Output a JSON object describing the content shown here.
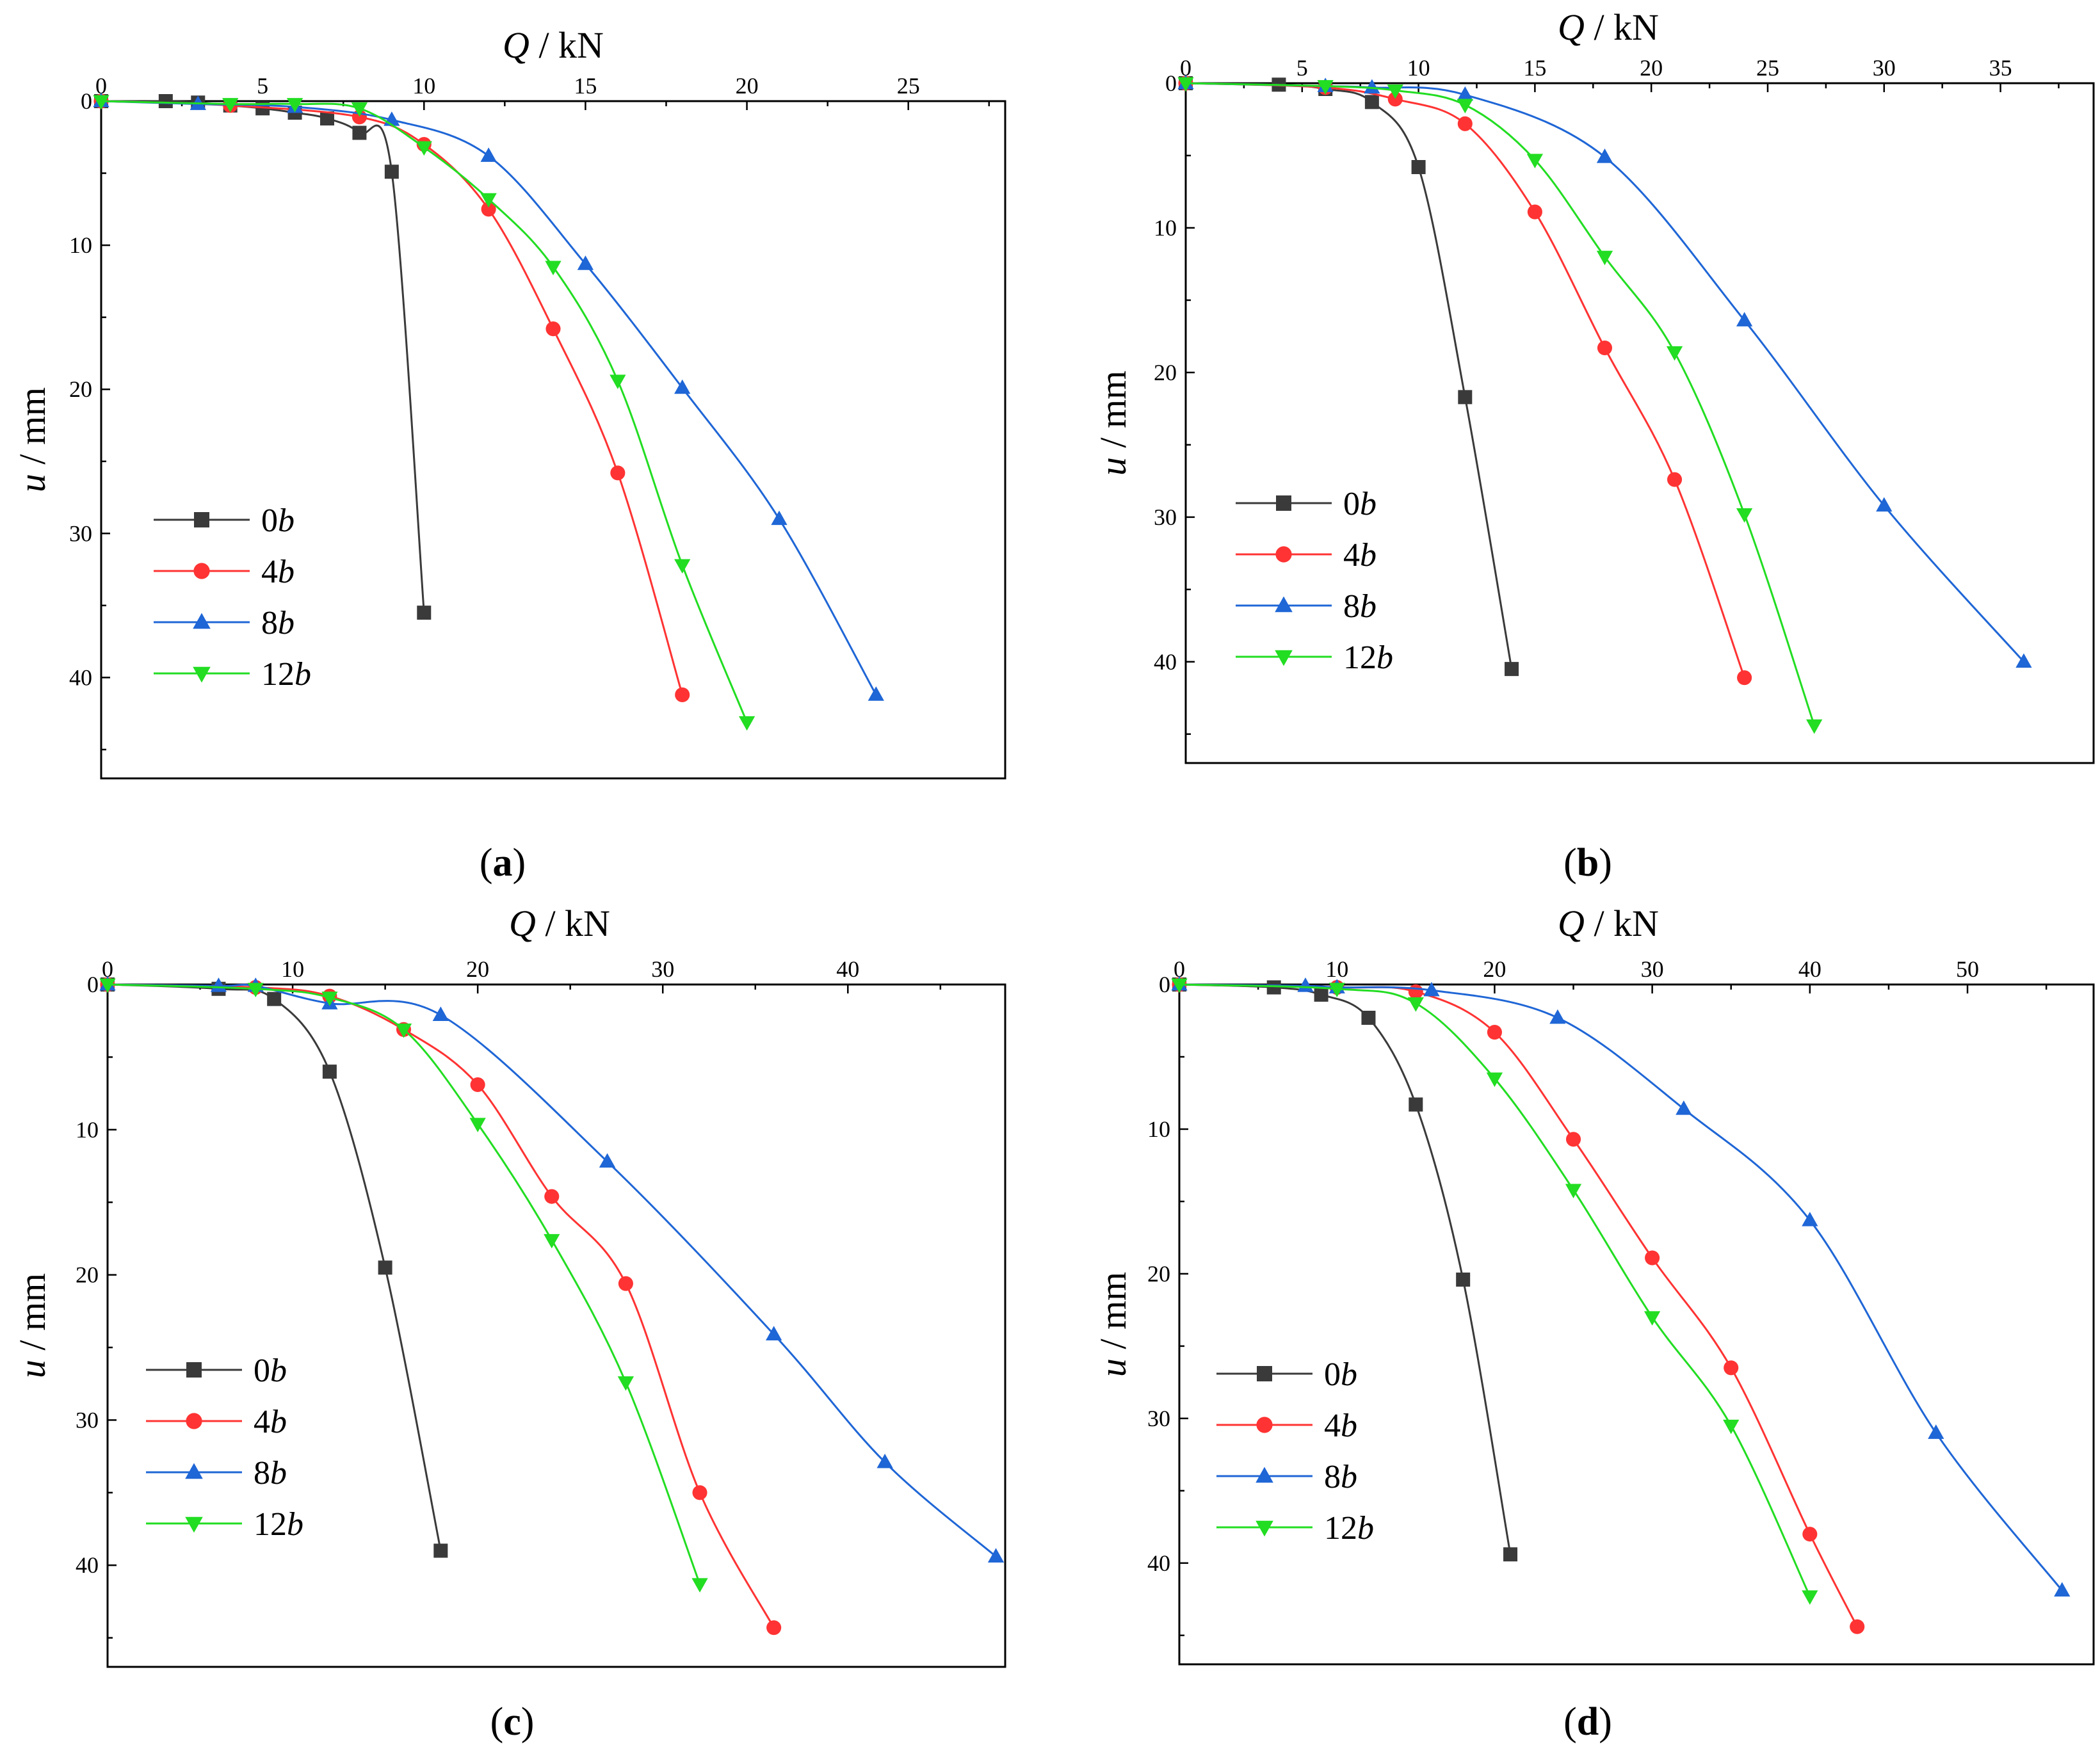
{
  "colors": {
    "0b": "#3a3a3a",
    "4b": "#ff3333",
    "8b": "#1f66d6",
    "12b": "#22dd22"
  },
  "chart_data": [
    {
      "type": "line",
      "panel_label": "a",
      "xlabel_italic": "Q",
      "xlabel_unit": " / kN",
      "ylabel_italic": "u",
      "ylabel_unit": " / mm",
      "xlim": [
        0,
        28
      ],
      "ylim": [
        0,
        47
      ],
      "xticks": [
        0,
        5,
        10,
        15,
        20,
        25
      ],
      "yticks": [
        0,
        10,
        20,
        30,
        40
      ],
      "series": [
        {
          "key": "0b",
          "name_num": "0",
          "name_ital": "b",
          "marker": "square",
          "points": [
            [
              0,
              0
            ],
            [
              2,
              0
            ],
            [
              3,
              0.1
            ],
            [
              4,
              0.3
            ],
            [
              5,
              0.5
            ],
            [
              6,
              0.8
            ],
            [
              7,
              1.2
            ],
            [
              8,
              2.2
            ],
            [
              9,
              4.9
            ],
            [
              10,
              35.5
            ]
          ]
        },
        {
          "key": "4b",
          "name_num": "4",
          "name_ital": "b",
          "marker": "circle",
          "points": [
            [
              0,
              0
            ],
            [
              4,
              0.3
            ],
            [
              8,
              1.1
            ],
            [
              10,
              3
            ],
            [
              12,
              7.5
            ],
            [
              14,
              15.8
            ],
            [
              16,
              25.8
            ],
            [
              18,
              41.2
            ]
          ]
        },
        {
          "key": "8b",
          "name_num": "8",
          "name_ital": "b",
          "marker": "triangle-up",
          "points": [
            [
              0,
              0
            ],
            [
              3,
              0.2
            ],
            [
              6,
              0.4
            ],
            [
              9,
              1.3
            ],
            [
              12,
              3.8
            ],
            [
              15,
              11.3
            ],
            [
              18,
              19.9
            ],
            [
              21,
              29
            ],
            [
              24,
              41.2
            ]
          ]
        },
        {
          "key": "12b",
          "name_num": "12",
          "name_ital": "b",
          "marker": "triangle-down",
          "points": [
            [
              0,
              0
            ],
            [
              4,
              0.2
            ],
            [
              6,
              0.2
            ],
            [
              8,
              0.5
            ],
            [
              10,
              3.2
            ],
            [
              12,
              6.8
            ],
            [
              14,
              11.5
            ],
            [
              16,
              19.4
            ],
            [
              18,
              32.2
            ],
            [
              20,
              43.1
            ]
          ]
        }
      ]
    },
    {
      "type": "line",
      "panel_label": "b",
      "xlabel_italic": "Q",
      "xlabel_unit": " / kN",
      "ylabel_italic": "u",
      "ylabel_unit": " / mm",
      "xlim": [
        0,
        39
      ],
      "ylim": [
        0,
        47
      ],
      "xticks": [
        0,
        5,
        10,
        15,
        20,
        25,
        30,
        35
      ],
      "yticks": [
        0,
        10,
        20,
        30,
        40
      ],
      "series": [
        {
          "key": "0b",
          "name_num": "0",
          "name_ital": "b",
          "marker": "square",
          "points": [
            [
              0,
              0
            ],
            [
              4,
              0.1
            ],
            [
              6,
              0.4
            ],
            [
              8,
              1.3
            ],
            [
              10,
              5.8
            ],
            [
              12,
              21.7
            ],
            [
              14,
              40.5
            ]
          ]
        },
        {
          "key": "4b",
          "name_num": "4",
          "name_ital": "b",
          "marker": "circle",
          "points": [
            [
              0,
              0
            ],
            [
              6,
              0.3
            ],
            [
              9,
              1.1
            ],
            [
              12,
              2.8
            ],
            [
              15,
              8.9
            ],
            [
              18,
              18.3
            ],
            [
              21,
              27.4
            ],
            [
              24,
              41.1
            ]
          ]
        },
        {
          "key": "8b",
          "name_num": "8",
          "name_ital": "b",
          "marker": "triangle-up",
          "points": [
            [
              0,
              0
            ],
            [
              6,
              0.2
            ],
            [
              8,
              0.3
            ],
            [
              12,
              0.8
            ],
            [
              18,
              5.1
            ],
            [
              24,
              16.4
            ],
            [
              30,
              29.2
            ],
            [
              36,
              40
            ]
          ]
        },
        {
          "key": "12b",
          "name_num": "12",
          "name_ital": "b",
          "marker": "triangle-down",
          "points": [
            [
              0,
              0
            ],
            [
              6,
              0.2
            ],
            [
              9,
              0.5
            ],
            [
              12,
              1.5
            ],
            [
              15,
              5.3
            ],
            [
              18,
              12
            ],
            [
              21,
              18.6
            ],
            [
              24,
              29.8
            ],
            [
              27,
              44.4
            ]
          ]
        }
      ]
    },
    {
      "type": "line",
      "panel_label": "c",
      "xlabel_italic": "Q",
      "xlabel_unit": " / kN",
      "ylabel_italic": "u",
      "ylabel_unit": " / mm",
      "xlim": [
        0,
        48.5
      ],
      "ylim": [
        0,
        47
      ],
      "xticks": [
        0,
        10,
        20,
        30,
        40
      ],
      "yticks": [
        0,
        10,
        20,
        30,
        40
      ],
      "series": [
        {
          "key": "0b",
          "name_num": "0",
          "name_ital": "b",
          "marker": "square",
          "points": [
            [
              0,
              0
            ],
            [
              6,
              0.3
            ],
            [
              9,
              1
            ],
            [
              12,
              6
            ],
            [
              15,
              19.5
            ],
            [
              18,
              39
            ]
          ]
        },
        {
          "key": "4b",
          "name_num": "4",
          "name_ital": "b",
          "marker": "circle",
          "points": [
            [
              0,
              0
            ],
            [
              8,
              0.2
            ],
            [
              12,
              0.8
            ],
            [
              16,
              3.1
            ],
            [
              20,
              6.9
            ],
            [
              24,
              14.6
            ],
            [
              28,
              20.6
            ],
            [
              32,
              35
            ],
            [
              36,
              44.3
            ]
          ]
        },
        {
          "key": "8b",
          "name_num": "8",
          "name_ital": "b",
          "marker": "triangle-up",
          "points": [
            [
              0,
              0
            ],
            [
              6,
              0.1
            ],
            [
              8,
              0.1
            ],
            [
              12,
              1.3
            ],
            [
              18,
              2.1
            ],
            [
              27,
              12.2
            ],
            [
              36,
              24.1
            ],
            [
              42,
              32.9
            ],
            [
              48,
              39.4
            ]
          ]
        },
        {
          "key": "12b",
          "name_num": "12",
          "name_ital": "b",
          "marker": "triangle-down",
          "points": [
            [
              0,
              0
            ],
            [
              8,
              0.3
            ],
            [
              12,
              0.9
            ],
            [
              16,
              3.1
            ],
            [
              20,
              9.6
            ],
            [
              24,
              17.6
            ],
            [
              28,
              27.4
            ],
            [
              32,
              41.3
            ]
          ]
        }
      ]
    },
    {
      "type": "line",
      "panel_label": "d",
      "xlabel_italic": "Q",
      "xlabel_unit": " / kN",
      "ylabel_italic": "u",
      "ylabel_unit": " / mm",
      "xlim": [
        0,
        58
      ],
      "ylim": [
        0,
        47
      ],
      "xticks": [
        0,
        10,
        20,
        30,
        40,
        50
      ],
      "yticks": [
        0,
        10,
        20,
        30,
        40
      ],
      "series": [
        {
          "key": "0b",
          "name_num": "0",
          "name_ital": "b",
          "marker": "square",
          "points": [
            [
              0,
              0
            ],
            [
              6,
              0.2
            ],
            [
              9,
              0.7
            ],
            [
              12,
              2.3
            ],
            [
              15,
              8.3
            ],
            [
              18,
              20.4
            ],
            [
              21,
              39.4
            ]
          ]
        },
        {
          "key": "4b",
          "name_num": "4",
          "name_ital": "b",
          "marker": "circle",
          "points": [
            [
              0,
              0
            ],
            [
              10,
              0.2
            ],
            [
              15,
              0.5
            ],
            [
              20,
              3.3
            ],
            [
              25,
              10.7
            ],
            [
              30,
              18.9
            ],
            [
              35,
              26.5
            ],
            [
              40,
              38
            ],
            [
              43,
              44.4
            ]
          ]
        },
        {
          "key": "8b",
          "name_num": "8",
          "name_ital": "b",
          "marker": "triangle-up",
          "points": [
            [
              0,
              0
            ],
            [
              8,
              0.1
            ],
            [
              10,
              0.2
            ],
            [
              16,
              0.4
            ],
            [
              24,
              2.3
            ],
            [
              32,
              8.6
            ],
            [
              40,
              16.3
            ],
            [
              48,
              31
            ],
            [
              56,
              41.9
            ]
          ]
        },
        {
          "key": "12b",
          "name_num": "12",
          "name_ital": "b",
          "marker": "triangle-down",
          "points": [
            [
              0,
              0
            ],
            [
              10,
              0.3
            ],
            [
              15,
              1.3
            ],
            [
              20,
              6.5
            ],
            [
              25,
              14.2
            ],
            [
              30,
              23
            ],
            [
              35,
              30.5
            ],
            [
              40,
              42.3
            ]
          ]
        }
      ]
    }
  ]
}
